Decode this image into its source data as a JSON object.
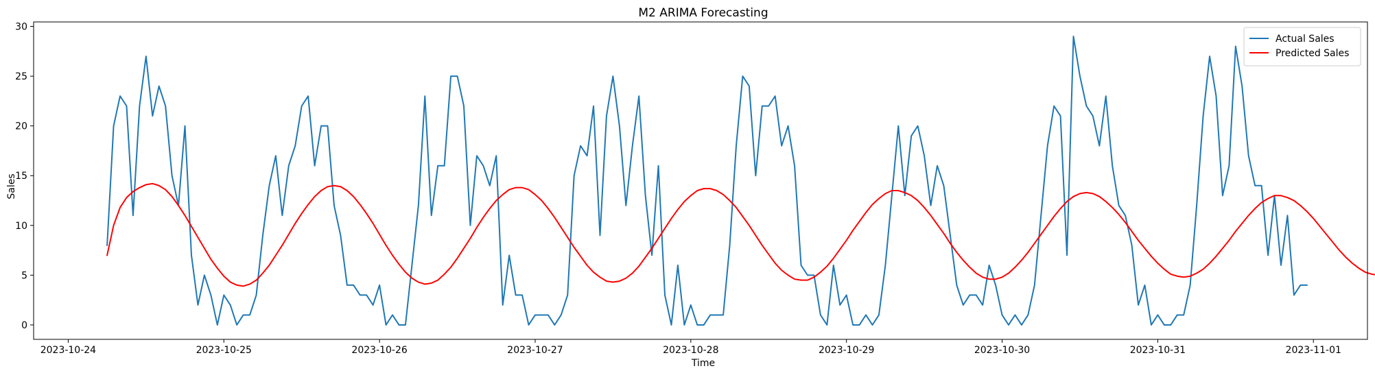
{
  "chart_data": {
    "type": "line",
    "title": "M2 ARIMA Forecasting",
    "xlabel": "Time",
    "ylabel": "Sales",
    "x_start": "2023-10-24T06:00",
    "x_step_hours": 1,
    "xlim": [
      "2023-10-23T18:40",
      "2023-11-01T08:20"
    ],
    "ylim": [
      -1.45,
      30.45
    ],
    "xticks": [
      "2023-10-24",
      "2023-10-25",
      "2023-10-26",
      "2023-10-27",
      "2023-10-28",
      "2023-10-29",
      "2023-10-30",
      "2023-10-31",
      "2023-11-01"
    ],
    "yticks": [
      0,
      5,
      10,
      15,
      20,
      25,
      30
    ],
    "grid": false,
    "legend": "upper-right",
    "series": [
      {
        "name": "Actual Sales",
        "color": "#1f77b4",
        "values": [
          8,
          20,
          23,
          22,
          11,
          22,
          27,
          21,
          24,
          22,
          15,
          12,
          20,
          7,
          2,
          5,
          3,
          0,
          3,
          2,
          0,
          1,
          1,
          3,
          9,
          14,
          17,
          11,
          16,
          18,
          22,
          23,
          16,
          20,
          20,
          12,
          9,
          4,
          4,
          3,
          3,
          2,
          4,
          0,
          1,
          0,
          0,
          6,
          12,
          23,
          11,
          16,
          16,
          25,
          25,
          22,
          10,
          17,
          16,
          14,
          17,
          2,
          7,
          3,
          3,
          0,
          1,
          1,
          1,
          0,
          1,
          3,
          15,
          18,
          17,
          22,
          9,
          21,
          25,
          20,
          12,
          18,
          23,
          13,
          7,
          16,
          3,
          0,
          6,
          0,
          2,
          0,
          0,
          1,
          1,
          1,
          8,
          18,
          25,
          24,
          15,
          22,
          22,
          23,
          18,
          20,
          16,
          6,
          5,
          5,
          1,
          0,
          6,
          2,
          3,
          0,
          0,
          1,
          0,
          1,
          6,
          13,
          20,
          13,
          19,
          20,
          17,
          12,
          16,
          14,
          9,
          4,
          2,
          3,
          3,
          2,
          6,
          4,
          1,
          0,
          1,
          0,
          1,
          4,
          11,
          18,
          22,
          21,
          7,
          29,
          25,
          22,
          21,
          18,
          23,
          16,
          12,
          11,
          8,
          2,
          4,
          0,
          1,
          0,
          0,
          1,
          1,
          4,
          12,
          21,
          27,
          23,
          13,
          16,
          28,
          24,
          17,
          14,
          14,
          7,
          13,
          6,
          11,
          3,
          4,
          4
        ]
      },
      {
        "name": "Predicted Sales",
        "color": "#ff0000",
        "values": [
          7,
          10,
          11.8,
          12.8,
          13.4,
          13.8,
          14.1,
          14.2,
          14.0,
          13.6,
          12.9,
          12.0,
          11.0,
          9.9,
          8.8,
          7.7,
          6.6,
          5.7,
          4.9,
          4.3,
          4.0,
          3.9,
          4.1,
          4.5,
          5.2,
          6.0,
          7.0,
          8.0,
          9.1,
          10.2,
          11.2,
          12.1,
          12.9,
          13.5,
          13.9,
          14.0,
          13.9,
          13.5,
          12.9,
          12.1,
          11.2,
          10.2,
          9.1,
          8.0,
          7.0,
          6.1,
          5.3,
          4.7,
          4.3,
          4.1,
          4.2,
          4.5,
          5.1,
          5.8,
          6.7,
          7.7,
          8.7,
          9.8,
          10.8,
          11.7,
          12.5,
          13.1,
          13.6,
          13.8,
          13.8,
          13.6,
          13.1,
          12.5,
          11.7,
          10.8,
          9.8,
          8.8,
          7.8,
          6.9,
          6.0,
          5.3,
          4.8,
          4.4,
          4.3,
          4.4,
          4.7,
          5.2,
          5.9,
          6.8,
          7.7,
          8.7,
          9.7,
          10.7,
          11.6,
          12.4,
          13.0,
          13.5,
          13.7,
          13.7,
          13.5,
          13.1,
          12.5,
          11.8,
          10.9,
          10.0,
          9.0,
          8.0,
          7.1,
          6.2,
          5.5,
          5.0,
          4.6,
          4.5,
          4.5,
          4.8,
          5.3,
          5.9,
          6.7,
          7.6,
          8.5,
          9.5,
          10.4,
          11.3,
          12.1,
          12.7,
          13.2,
          13.5,
          13.5,
          13.3,
          13.0,
          12.5,
          11.8,
          11.0,
          10.1,
          9.2,
          8.2,
          7.3,
          6.5,
          5.8,
          5.2,
          4.8,
          4.6,
          4.6,
          4.8,
          5.2,
          5.8,
          6.5,
          7.3,
          8.2,
          9.1,
          10.0,
          10.9,
          11.7,
          12.4,
          12.9,
          13.2,
          13.3,
          13.2,
          12.9,
          12.4,
          11.8,
          11.1,
          10.3,
          9.4,
          8.5,
          7.7,
          6.9,
          6.2,
          5.6,
          5.1,
          4.9,
          4.8,
          4.9,
          5.2,
          5.6,
          6.2,
          6.9,
          7.7,
          8.5,
          9.4,
          10.2,
          11.0,
          11.7,
          12.3,
          12.7,
          13.0,
          13.0,
          12.8,
          12.5,
          12.0,
          11.4,
          10.7,
          9.9,
          9.1,
          8.3,
          7.5,
          6.8,
          6.2,
          5.7,
          5.3,
          5.1,
          5.0
        ]
      }
    ]
  }
}
